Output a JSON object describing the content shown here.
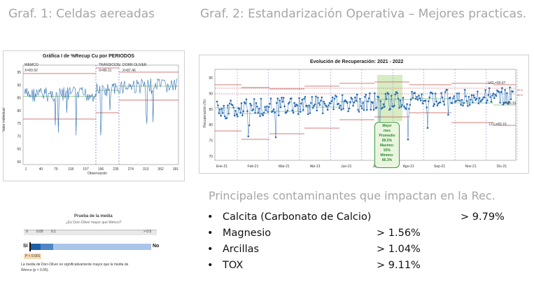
{
  "headings": {
    "graf1": "Graf. 1: Celdas aereadas",
    "graf2": "Graf. 2: Estandarización Operativa – Mejores practicas.",
    "contaminants": "Principales contaminantes que impactan en la Rec."
  },
  "chart1": {
    "title": "Gráfica I de %Recup Cu por PERIODOS",
    "ylabel": "Valor individual",
    "xlabel": "Observación",
    "periods": [
      "WEMCO",
      "TRANSICION",
      "DORR OLIVER"
    ],
    "means": [
      "X=83.92",
      "X=86.11",
      "X=87.46"
    ],
    "yticks": [
      "95",
      "90",
      "85",
      "80",
      "75",
      "70",
      "65",
      "60"
    ],
    "xticks": [
      "1",
      "40",
      "79",
      "118",
      "157",
      "196",
      "235",
      "274",
      "313",
      "352",
      "391"
    ]
  },
  "chart2": {
    "title": "Evolución de Recuperación: 2021 - 2022",
    "ylabel": "Recuperación (%)",
    "ucl": "UCL=90.67",
    "mean": "X=86.91",
    "lcl": "LCL=83.15",
    "ref_labels": [
      "90.9",
      "89.5"
    ],
    "yticks": [
      "95",
      "90",
      "85",
      "80",
      "75",
      "70"
    ],
    "xticks": [
      "Ene-21",
      "Feb-21",
      "Mar-21",
      "Abr-21",
      "Jun-21",
      "Jul-21",
      "Ago-21",
      "Sep-21",
      "Nov-21",
      "Dic-21"
    ],
    "callout": [
      "Mejor",
      "mes",
      "Promedio",
      "89.5%",
      "Maximo:",
      "93%",
      "Minimo:",
      "86.3%"
    ]
  },
  "test": {
    "title": "Prueba de la media",
    "question": "¿Es Dorr-Oliver mayor que Wenco?",
    "scale": [
      "0",
      "0.05",
      "0.1",
      "> 0.5"
    ],
    "yes": "Sí",
    "no": "No",
    "pvalue": "P < 0.001",
    "conclusion_line1": "La media de Dorr-Oliver es significativamente mayor que la media de",
    "conclusion_line2": "Wenco (p < 0.05)."
  },
  "contaminants": [
    {
      "bullet": "•",
      "name": "Calcita (Carbonato de Calcio)",
      "value": "> 9.79%"
    },
    {
      "bullet": "•",
      "name": "Magnesio",
      "value": "> 1.56%"
    },
    {
      "bullet": "•",
      "name": "Arcillas",
      "value": "> 1.04%"
    },
    {
      "bullet": "•",
      "name": "TOX",
      "value": "> 9.11%"
    }
  ],
  "colors": {
    "heading_gray": "#a6a6a6",
    "series_blue": "#2a6db5",
    "limit_red": "#c0504d",
    "mean_green": "#3c9a3c",
    "highlight_green": "#d8ecc4",
    "bar_dark": "#1f5fa8",
    "bar_light": "#a9c6e8"
  }
}
